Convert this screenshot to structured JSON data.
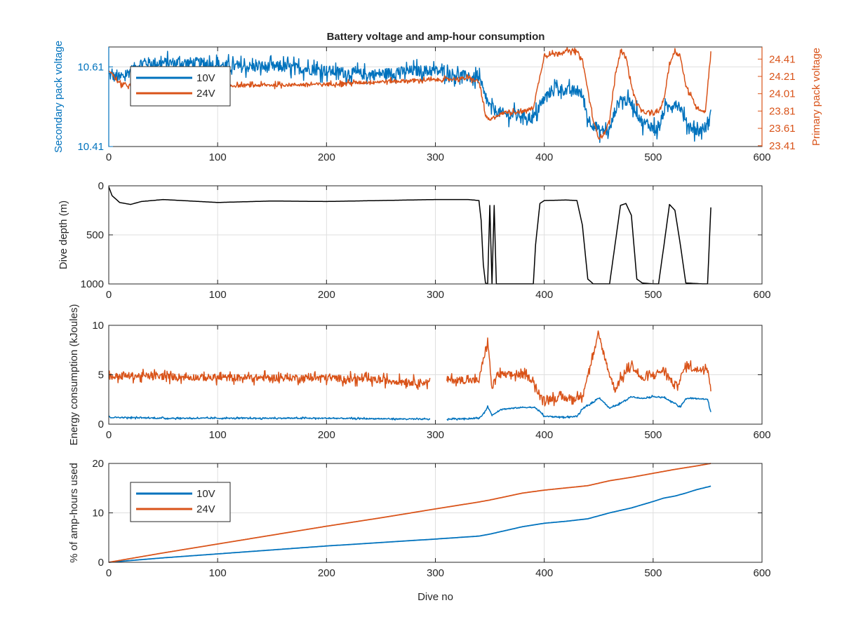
{
  "figure": {
    "title": "Battery voltage and amp-hour consumption",
    "background": "#ffffff"
  },
  "colors": {
    "blue": "#0072BD",
    "orange": "#D95319",
    "black": "#000000",
    "axis": "#262626",
    "grid": "#dfdfdf"
  },
  "chart_data": [
    {
      "id": "voltage",
      "type": "line",
      "title": "Battery voltage and amp-hour consumption",
      "xlabel": "",
      "ylabel": "Secondary pack voltage",
      "ylabel_right": "Primary pack voltage",
      "xlim": [
        0,
        600
      ],
      "ylim": [
        10.41,
        10.66
      ],
      "ylim_right": [
        23.4,
        24.55
      ],
      "xticks": [
        0,
        100,
        200,
        300,
        400,
        500,
        600
      ],
      "yticks": [
        10.41,
        10.61
      ],
      "yticks_right": [
        23.41,
        23.61,
        23.81,
        24.01,
        24.21,
        24.41
      ],
      "ytick_labels": [
        "10.41",
        "10.61"
      ],
      "ytick_labels_right": [
        "23.41",
        "23.61",
        "23.81",
        "24.01",
        "24.21",
        "24.41"
      ],
      "grid": true,
      "legend": {
        "position": "top-left",
        "entries": [
          "10V",
          "24V"
        ]
      },
      "series": [
        {
          "name": "10V",
          "axis": "left",
          "color": "#0072BD",
          "x": [
            0,
            10,
            20,
            30,
            50,
            80,
            120,
            160,
            200,
            240,
            280,
            300,
            320,
            340,
            345,
            350,
            355,
            365,
            380,
            390,
            400,
            410,
            420,
            430,
            435,
            440,
            450,
            460,
            465,
            470,
            480,
            490,
            500,
            505,
            510,
            520,
            525,
            530,
            540,
            550,
            553
          ],
          "y": [
            10.59,
            10.58,
            10.6,
            10.62,
            10.62,
            10.62,
            10.61,
            10.61,
            10.6,
            10.59,
            10.6,
            10.6,
            10.59,
            10.58,
            10.54,
            10.51,
            10.5,
            10.49,
            10.49,
            10.48,
            10.53,
            10.56,
            10.55,
            10.55,
            10.54,
            10.48,
            10.45,
            10.45,
            10.5,
            10.53,
            10.52,
            10.47,
            10.46,
            10.45,
            10.5,
            10.52,
            10.51,
            10.47,
            10.45,
            10.46,
            10.49
          ],
          "noise": 0.014
        },
        {
          "name": "24V",
          "axis": "right",
          "color": "#D95319",
          "x": [
            0,
            10,
            30,
            60,
            100,
            150,
            200,
            250,
            300,
            330,
            340,
            344,
            346,
            350,
            355,
            365,
            380,
            390,
            395,
            400,
            420,
            430,
            435,
            440,
            445,
            450,
            455,
            460,
            465,
            470,
            475,
            480,
            485,
            490,
            500,
            505,
            510,
            515,
            520,
            525,
            530,
            540,
            548,
            553
          ],
          "y": [
            24.29,
            24.12,
            24.08,
            24.08,
            24.1,
            24.11,
            24.12,
            24.15,
            24.17,
            24.19,
            24.15,
            23.9,
            23.75,
            23.7,
            23.75,
            23.8,
            23.8,
            23.85,
            24.15,
            24.45,
            24.5,
            24.5,
            24.4,
            24.05,
            23.7,
            23.5,
            23.55,
            23.7,
            24.2,
            24.5,
            24.45,
            24.1,
            23.9,
            23.8,
            23.78,
            23.8,
            23.95,
            24.35,
            24.5,
            24.45,
            24.1,
            23.85,
            23.8,
            24.5
          ],
          "noise": 0.02
        }
      ]
    },
    {
      "id": "depth",
      "type": "line",
      "title": "",
      "xlabel": "",
      "ylabel": "Dive depth (m)",
      "xlim": [
        0,
        600
      ],
      "ylim": [
        0,
        1000
      ],
      "yreverse": true,
      "xticks": [
        0,
        100,
        200,
        300,
        400,
        500,
        600
      ],
      "yticks": [
        0,
        500,
        1000
      ],
      "ytick_labels": [
        "0",
        "500",
        "1000"
      ],
      "grid": true,
      "series": [
        {
          "name": "",
          "color": "#000000",
          "x": [
            0,
            3,
            10,
            20,
            30,
            50,
            100,
            150,
            200,
            250,
            300,
            330,
            340,
            342,
            344,
            346,
            348,
            350,
            352,
            354,
            356,
            360,
            380,
            390,
            392,
            396,
            400,
            420,
            430,
            435,
            440,
            445,
            460,
            465,
            470,
            475,
            480,
            485,
            490,
            500,
            505,
            510,
            515,
            520,
            525,
            530,
            545,
            550,
            553
          ],
          "y": [
            10,
            100,
            170,
            190,
            160,
            140,
            170,
            155,
            160,
            150,
            140,
            140,
            150,
            350,
            800,
            990,
            999,
            200,
            999,
            200,
            999,
            999,
            999,
            999,
            600,
            180,
            150,
            145,
            150,
            400,
            950,
            999,
            999,
            600,
            200,
            180,
            300,
            950,
            990,
            999,
            999,
            600,
            190,
            250,
            600,
            990,
            999,
            999,
            220
          ]
        }
      ]
    },
    {
      "id": "energy",
      "type": "line",
      "title": "",
      "xlabel": "",
      "ylabel": "Energy consumption (kJoules)",
      "xlim": [
        0,
        600
      ],
      "ylim": [
        0,
        10
      ],
      "xticks": [
        0,
        100,
        200,
        300,
        400,
        500,
        600
      ],
      "yticks": [
        0,
        5,
        10
      ],
      "ytick_labels": [
        "0",
        "5",
        "10"
      ],
      "grid": true,
      "series": [
        {
          "name": "24V",
          "color": "#D95319",
          "x": [
            0,
            20,
            100,
            200,
            295,
            300,
            310,
            340,
            344,
            348,
            352,
            356,
            360,
            380,
            390,
            395,
            400,
            420,
            430,
            435,
            440,
            445,
            450,
            455,
            460,
            465,
            470,
            480,
            490,
            500,
            510,
            520,
            525,
            530,
            540,
            550,
            553
          ],
          "y": [
            4.8,
            4.9,
            4.7,
            4.7,
            4.2,
            null,
            4.5,
            4.4,
            6.5,
            8.5,
            3.5,
            5.0,
            5.0,
            5.0,
            4.5,
            2.8,
            2.6,
            2.6,
            2.6,
            3.0,
            5.0,
            7.0,
            9.0,
            7.0,
            5.0,
            3.5,
            4.5,
            6.0,
            4.5,
            5.0,
            5.5,
            3.8,
            4.5,
            6.0,
            5.5,
            5.8,
            3.5
          ],
          "noise": 0.35
        },
        {
          "name": "10V",
          "color": "#0072BD",
          "x": [
            0,
            50,
            100,
            200,
            295,
            300,
            310,
            340,
            344,
            348,
            352,
            360,
            380,
            390,
            395,
            400,
            420,
            430,
            435,
            440,
            445,
            450,
            455,
            460,
            470,
            480,
            490,
            500,
            510,
            520,
            525,
            530,
            540,
            550,
            553
          ],
          "y": [
            0.7,
            0.6,
            0.6,
            0.6,
            0.5,
            null,
            0.5,
            0.6,
            1.0,
            1.8,
            0.9,
            1.5,
            1.7,
            1.7,
            1.4,
            0.8,
            0.7,
            0.8,
            1.5,
            1.9,
            2.2,
            2.7,
            2.2,
            1.6,
            2.1,
            2.8,
            2.6,
            2.8,
            2.7,
            2.1,
            1.7,
            2.6,
            2.6,
            2.5,
            1.2
          ],
          "noise": 0.06
        }
      ]
    },
    {
      "id": "amphours",
      "type": "line",
      "title": "",
      "xlabel": "Dive no",
      "ylabel": "% of amp-hours used",
      "xlim": [
        0,
        600
      ],
      "ylim": [
        0,
        20
      ],
      "xticks": [
        0,
        100,
        200,
        300,
        400,
        500,
        600
      ],
      "yticks": [
        0,
        10,
        20
      ],
      "ytick_labels": [
        "0",
        "10",
        "20"
      ],
      "grid": true,
      "legend": {
        "position": "top-left",
        "entries": [
          "10V",
          "24V"
        ]
      },
      "series": [
        {
          "name": "10V",
          "color": "#0072BD",
          "x": [
            0,
            50,
            100,
            150,
            200,
            250,
            300,
            340,
            350,
            360,
            380,
            400,
            420,
            440,
            460,
            480,
            500,
            510,
            520,
            530,
            540,
            553
          ],
          "y": [
            0,
            0.9,
            1.7,
            2.5,
            3.3,
            4.0,
            4.7,
            5.3,
            5.7,
            6.2,
            7.2,
            7.9,
            8.3,
            8.8,
            10.0,
            11.0,
            12.3,
            13.0,
            13.4,
            14.0,
            14.7,
            15.4
          ]
        },
        {
          "name": "24V",
          "color": "#D95319",
          "x": [
            0,
            50,
            100,
            150,
            200,
            250,
            300,
            340,
            350,
            380,
            400,
            440,
            460,
            480,
            500,
            520,
            540,
            553
          ],
          "y": [
            0,
            1.9,
            3.7,
            5.5,
            7.3,
            9.0,
            10.8,
            12.2,
            12.6,
            14.0,
            14.6,
            15.5,
            16.5,
            17.2,
            18.0,
            18.8,
            19.5,
            20.0
          ]
        }
      ]
    }
  ]
}
